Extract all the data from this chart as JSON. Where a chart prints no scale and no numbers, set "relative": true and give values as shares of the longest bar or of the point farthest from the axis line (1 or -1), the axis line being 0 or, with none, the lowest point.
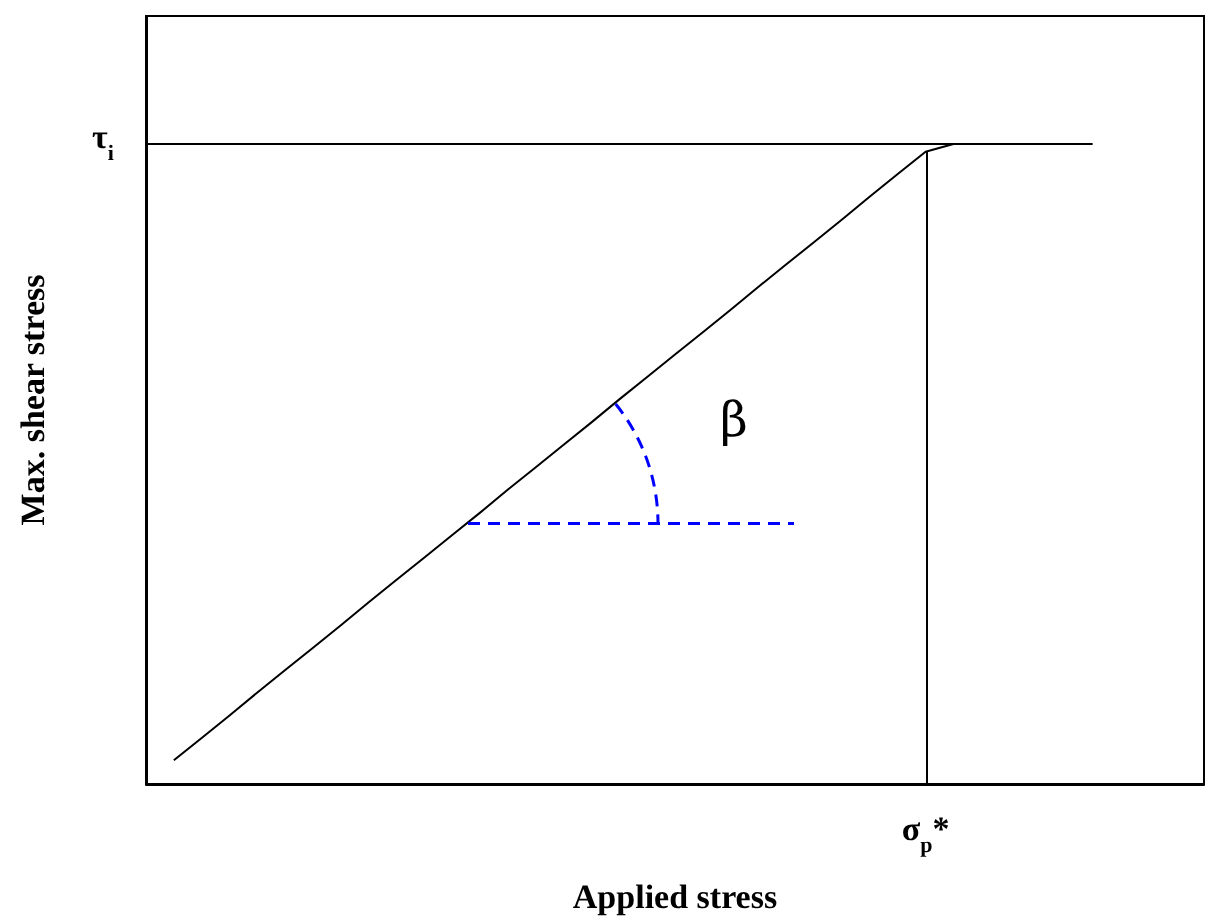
{
  "chart_data": {
    "type": "line",
    "relative": true,
    "xlabel": "Applied stress",
    "ylabel": "Max. shear stress",
    "categories": [
      null,
      null,
      null,
      null,
      null,
      null,
      null,
      null,
      null,
      null,
      null,
      null,
      null,
      null,
      null,
      null,
      null,
      null,
      null,
      null,
      null,
      null,
      null,
      null,
      null,
      null,
      null,
      null,
      null,
      null,
      null,
      null,
      null,
      null,
      null,
      null,
      null,
      null,
      null
    ],
    "values": [
      null,
      0.037,
      0.072,
      0.107,
      0.143,
      0.178,
      0.213,
      0.248,
      0.284,
      0.319,
      0.354,
      0.389,
      0.424,
      0.46,
      0.495,
      0.53,
      0.565,
      0.601,
      0.636,
      0.671,
      0.706,
      0.741,
      0.777,
      0.812,
      0.847,
      0.882,
      0.918,
      0.953,
      0.988,
      1,
      1,
      1,
      1,
      1,
      1,
      null,
      null,
      null,
      null
    ],
    "color": "#000000",
    "marker": "none",
    "line_style": "solid",
    "annotations": [
      "β",
      "σ$_{p}$*",
      "τ$_{i}$"
    ]
  }
}
